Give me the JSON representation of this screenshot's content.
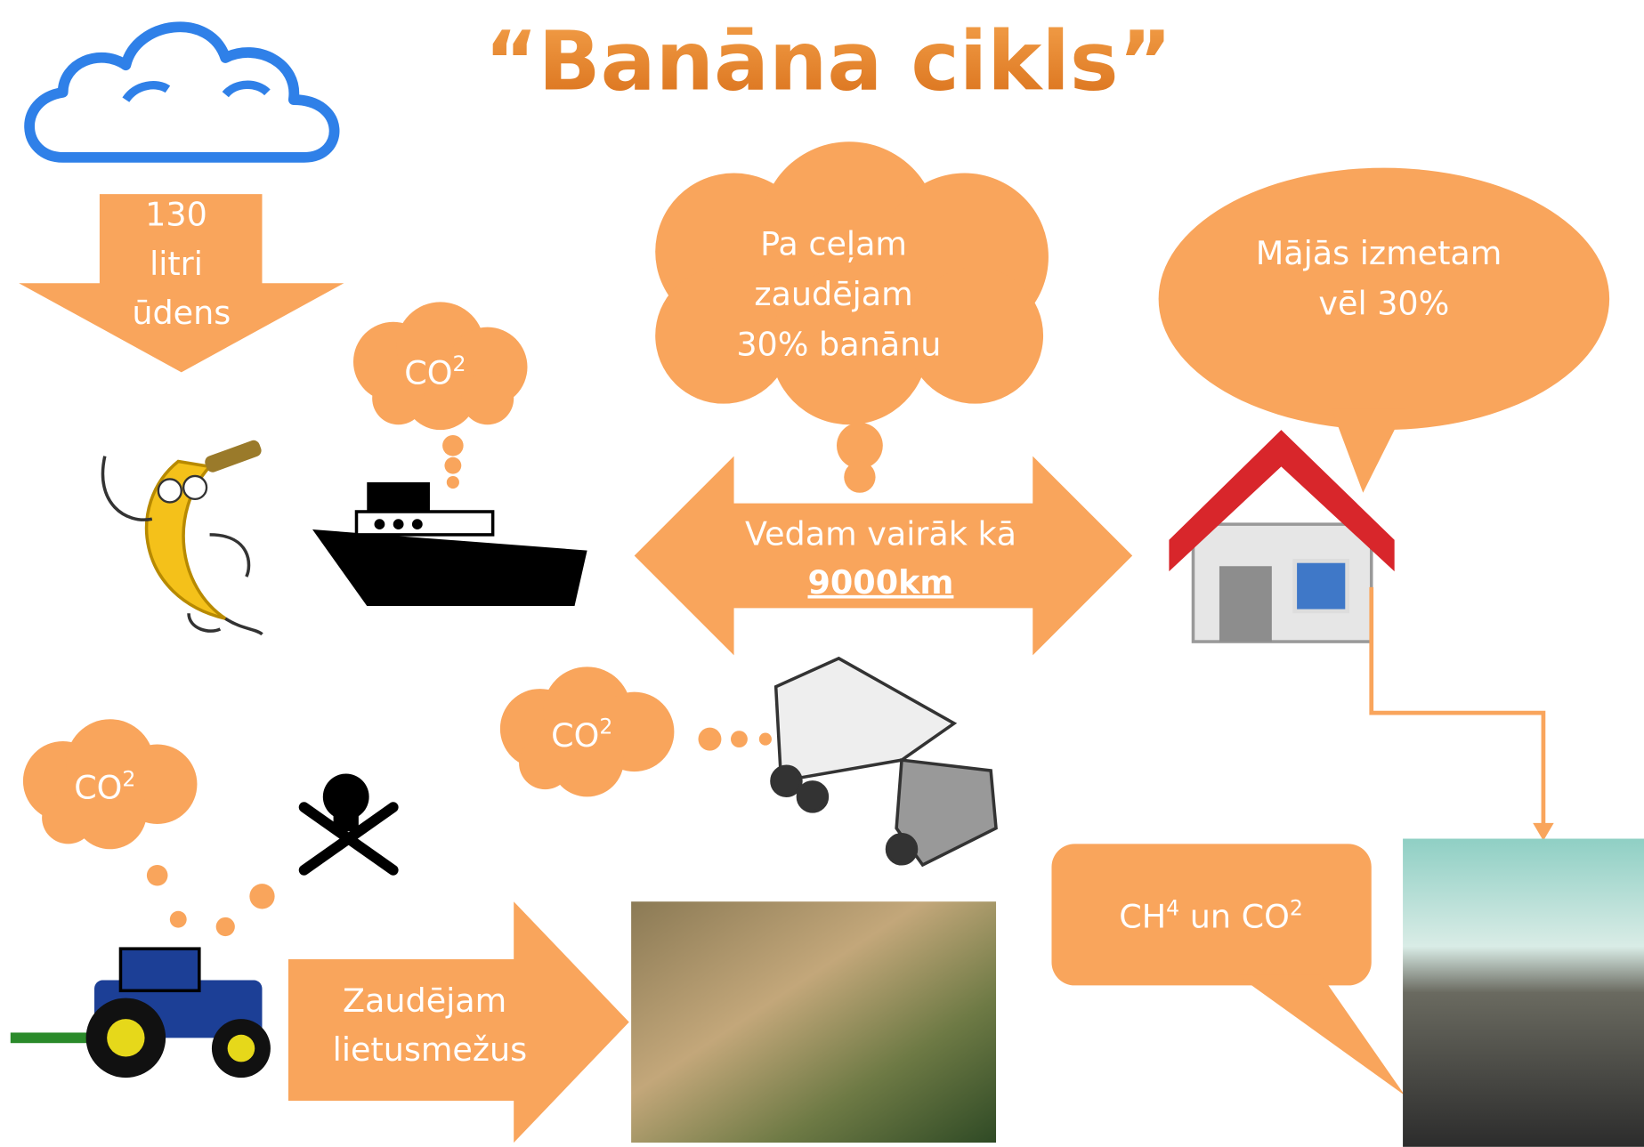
{
  "title": "“Banāna cikls”",
  "water_arrow": {
    "lines": [
      "130",
      "litri",
      "ūdens"
    ]
  },
  "ship_co2": {
    "base": "CO",
    "sup": "2"
  },
  "transport_loss": {
    "lines": [
      "Pa ceļam",
      "zaudējam",
      "30% banānu"
    ]
  },
  "home_loss": {
    "lines": [
      "Mājās izmetam",
      "vēl 30%"
    ]
  },
  "distance_arrow": {
    "line": "Vedam vairāk kā",
    "emphasis": "9000km"
  },
  "truck_co2": {
    "base": "CO",
    "sup": "2"
  },
  "tractor_co2": {
    "base": "CO",
    "sup": "2"
  },
  "deforestation_arrow": {
    "lines": [
      "Zaudējam",
      "lietusmežus"
    ]
  },
  "landfill_callout": {
    "parts": [
      "CH",
      "4",
      " un CO",
      "2"
    ]
  }
}
